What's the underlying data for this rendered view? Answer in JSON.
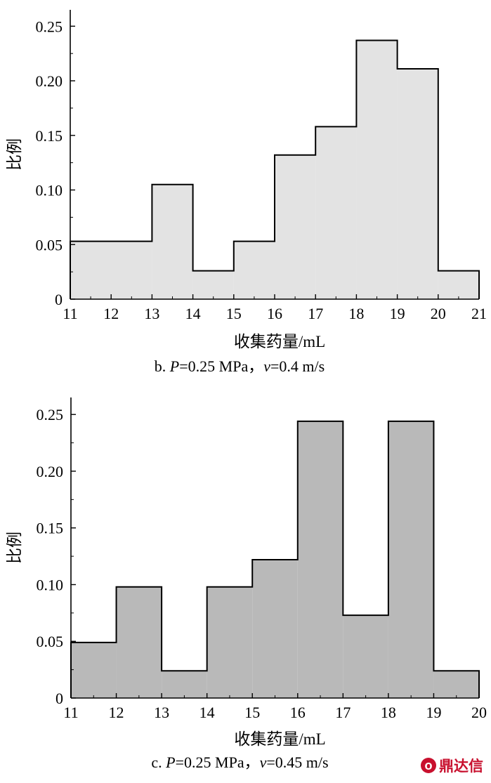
{
  "chart_data": [
    {
      "type": "bar",
      "x_bins": [
        [
          11,
          13
        ],
        [
          13,
          14
        ],
        [
          14,
          15
        ],
        [
          15,
          16
        ],
        [
          16,
          17
        ],
        [
          17,
          18
        ],
        [
          18,
          19
        ],
        [
          19,
          20
        ],
        [
          20,
          21
        ]
      ],
      "values": [
        0.053,
        0.105,
        0.026,
        0.053,
        0.132,
        0.158,
        0.237,
        0.211,
        0.026
      ],
      "xlim": [
        11,
        21
      ],
      "ylim": [
        0,
        0.265
      ],
      "xticks": [
        "11",
        "12",
        "13",
        "14",
        "15",
        "16",
        "17",
        "18",
        "19",
        "20",
        "21"
      ],
      "yticks": [
        "0",
        "0.05",
        "0.10",
        "0.15",
        "0.20",
        "0.25"
      ],
      "xlabel": "收集药量/mL",
      "ylabel": "比例",
      "caption": {
        "prefix": "b. ",
        "italic1": "P",
        "mid": "=0.25 MPa，",
        "italic2": "v",
        "suffix": "=0.4 m/s"
      },
      "fill": "#e3e3e3",
      "grid": false
    },
    {
      "type": "bar",
      "x_bins": [
        [
          11,
          12
        ],
        [
          12,
          13
        ],
        [
          13,
          14
        ],
        [
          14,
          15
        ],
        [
          15,
          16
        ],
        [
          16,
          17
        ],
        [
          17,
          18
        ],
        [
          18,
          19
        ],
        [
          19,
          20
        ]
      ],
      "values": [
        0.049,
        0.098,
        0.024,
        0.098,
        0.122,
        0.244,
        0.073,
        0.244,
        0.024
      ],
      "xlim": [
        11,
        20
      ],
      "ylim": [
        0,
        0.265
      ],
      "xticks": [
        "11",
        "12",
        "13",
        "14",
        "15",
        "16",
        "17",
        "18",
        "19",
        "20"
      ],
      "yticks": [
        "0",
        "0.05",
        "0.10",
        "0.15",
        "0.20",
        "0.25"
      ],
      "xlabel": "收集药量/mL",
      "ylabel": "比例",
      "caption": {
        "prefix": "c. ",
        "italic1": "P",
        "mid": "=0.25 MPa，",
        "italic2": "v",
        "suffix": "=0.45 m/s"
      },
      "fill": "#b9b9b9",
      "grid": false
    }
  ],
  "watermark": {
    "text": "鼎达信",
    "color": "#c8102e"
  }
}
